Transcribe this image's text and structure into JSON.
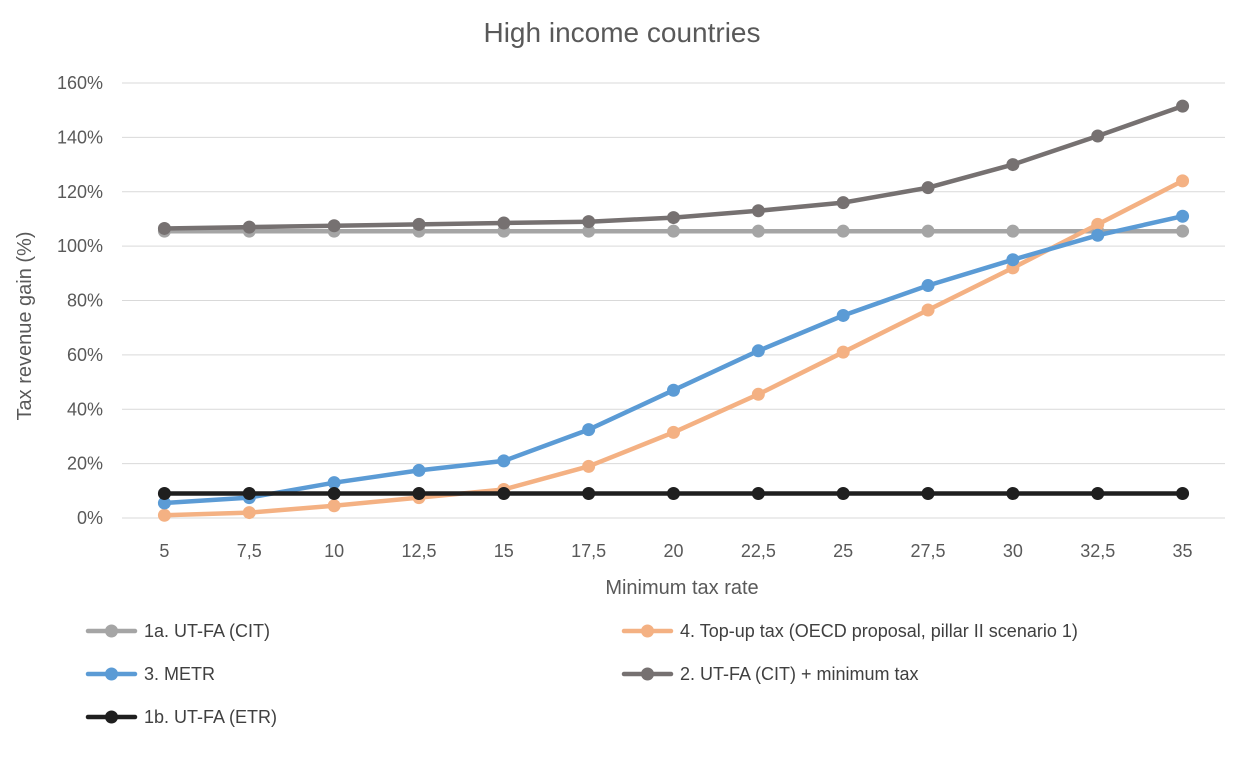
{
  "chart_data": {
    "type": "line",
    "title": "High income countries",
    "xlabel": "Minimum tax rate",
    "ylabel": "Tax revenue gain (%)",
    "categories": [
      "5",
      "7,5",
      "10",
      "12,5",
      "15",
      "17,5",
      "20",
      "22,5",
      "25",
      "27,5",
      "30",
      "32,5",
      "35"
    ],
    "ylim": [
      0,
      160
    ],
    "yticks": [
      0,
      20,
      40,
      60,
      80,
      100,
      120,
      140,
      160
    ],
    "ytick_labels": [
      "0%",
      "20%",
      "40%",
      "60%",
      "80%",
      "100%",
      "120%",
      "140%",
      "160%"
    ],
    "grid": true,
    "legend_position": "bottom",
    "series": [
      {
        "name": "1a. UT-FA (CIT)",
        "color": "#a5a5a5",
        "values": [
          105.5,
          105.5,
          105.5,
          105.5,
          105.5,
          105.5,
          105.5,
          105.5,
          105.5,
          105.5,
          105.5,
          105.5,
          105.5
        ]
      },
      {
        "name": "4. Top-up tax (OECD proposal, pillar II scenario 1)",
        "color": "#f4b183",
        "values": [
          1,
          2,
          4.5,
          7.5,
          10.5,
          19,
          31.5,
          45.5,
          61,
          76.5,
          92,
          108,
          124
        ]
      },
      {
        "name": "3. METR",
        "color": "#5b9bd5",
        "values": [
          5.5,
          7.5,
          13,
          17.5,
          21,
          32.5,
          47,
          61.5,
          74.5,
          85.5,
          95,
          104,
          111
        ]
      },
      {
        "name": "2. UT-FA (CIT) + minimum tax",
        "color": "#767171",
        "values": [
          106.5,
          107,
          107.5,
          108,
          108.5,
          109,
          110.5,
          113,
          116,
          121.5,
          130,
          140.5,
          151.5
        ]
      },
      {
        "name": "1b. UT-FA (ETR)",
        "color": "#1f1f1f",
        "values": [
          9,
          9,
          9,
          9,
          9,
          9,
          9,
          9,
          9,
          9,
          9,
          9,
          9
        ]
      }
    ],
    "draw_order": [
      0,
      1,
      2,
      3,
      4
    ]
  }
}
